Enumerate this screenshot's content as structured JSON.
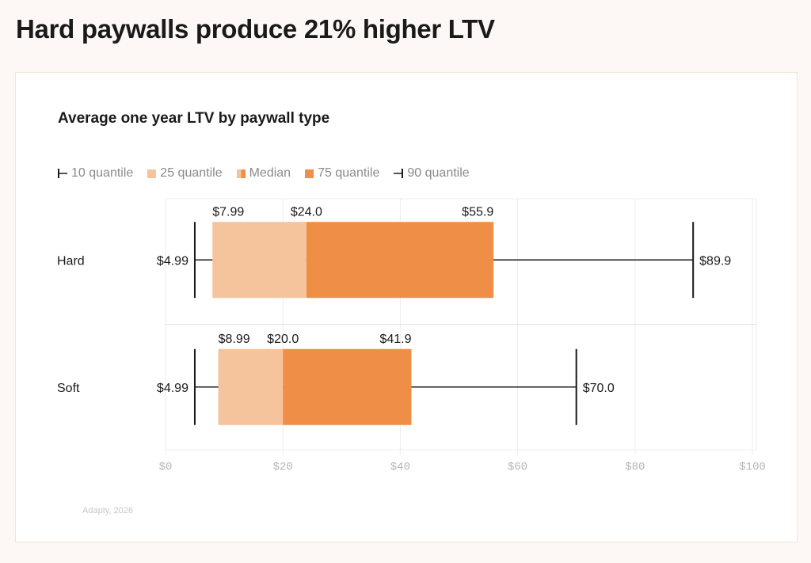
{
  "headline": "Hard paywalls produce 21% higher LTV",
  "source": "Adapty, 2026",
  "colors": {
    "q25": "#f5c49c",
    "q75": "#ef8f47",
    "whisker": "#1a1a1a",
    "grid": "#ececec"
  },
  "legend": [
    {
      "label": "10 quantile",
      "icon": "whisker-left-icon"
    },
    {
      "label": "25 quantile",
      "icon": "light-square-icon"
    },
    {
      "label": "Median",
      "icon": "split-square-icon"
    },
    {
      "label": "75 quantile",
      "icon": "dark-square-icon"
    },
    {
      "label": "90 quantile",
      "icon": "whisker-right-icon"
    }
  ],
  "chart_data": {
    "type": "box",
    "orientation": "horizontal",
    "title": "Average one year LTV by paywall type",
    "xlim": [
      0,
      100
    ],
    "xticks": [
      "$0",
      "$20",
      "$40",
      "$60",
      "$80",
      "$100"
    ],
    "xtick_values": [
      0,
      20,
      40,
      60,
      80,
      100
    ],
    "grid": true,
    "legend_position": "top-left",
    "categories": [
      "Hard",
      "Soft"
    ],
    "rows": [
      {
        "name": "Hard",
        "q10": 4.99,
        "q25": 7.99,
        "median": 24.0,
        "q75": 55.9,
        "q90": 89.9,
        "labels": {
          "q10": "$4.99",
          "q25": "$7.99",
          "median": "$24.0",
          "q75": "$55.9",
          "q90": "$89.9"
        }
      },
      {
        "name": "Soft",
        "q10": 4.99,
        "q25": 8.99,
        "median": 20.0,
        "q75": 41.9,
        "q90": 70.0,
        "labels": {
          "q10": "$4.99",
          "q25": "$8.99",
          "median": "$20.0",
          "q75": "$41.9",
          "q90": "$70.0"
        }
      }
    ]
  }
}
